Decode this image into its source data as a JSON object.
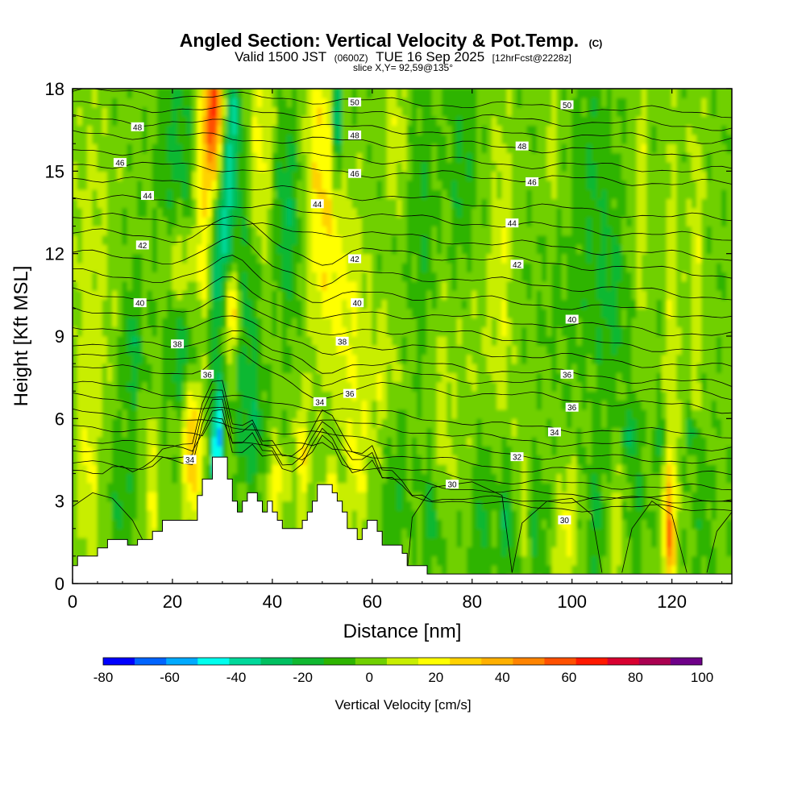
{
  "chart_data": {
    "type": "heatmap",
    "title": "Angled Section: Vertical Velocity & Pot.Temp.",
    "title_units": "(C)",
    "subtitle_main": "Valid 1500 JST",
    "subtitle_utc": "(0600Z)",
    "subtitle_date": "TUE 16 Sep 2025",
    "subtitle_fcst": "[12hrFcst@2228z]",
    "slice_label": "slice X,Y= 92,59@135°",
    "xlabel": "Distance [nm]",
    "ylabel": "Height [Kft MSL]",
    "xlim": [
      0,
      132
    ],
    "ylim": [
      0,
      18
    ],
    "x_ticks": [
      "0",
      "20",
      "40",
      "60",
      "80",
      "100",
      "120"
    ],
    "y_ticks": [
      "0",
      "3",
      "6",
      "9",
      "12",
      "15",
      "18"
    ],
    "colorbar": {
      "label": "Vertical Velocity [cm/s]",
      "ticks": [
        "-80",
        "-60",
        "-40",
        "-20",
        "0",
        "20",
        "40",
        "60",
        "80",
        "100"
      ],
      "bounds": [
        -80,
        100
      ],
      "step": 10,
      "colors": [
        "#0000ff",
        "#0064ff",
        "#00aaff",
        "#00ffee",
        "#00d89a",
        "#00c060",
        "#10b830",
        "#2eb400",
        "#70d000",
        "#c8ee00",
        "#ffff00",
        "#ffd200",
        "#ffb000",
        "#ff8400",
        "#ff5000",
        "#ff1800",
        "#d80030",
        "#aa0050",
        "#6e0088"
      ]
    },
    "isentropes_c": [
      "30",
      "32",
      "34",
      "36",
      "38",
      "40",
      "42",
      "44",
      "46",
      "48",
      "50"
    ],
    "contour_labels": [
      {
        "text": "50",
        "x": 56.5,
        "y": 17.5
      },
      {
        "text": "50",
        "x": 99,
        "y": 17.4
      },
      {
        "text": "48",
        "x": 13,
        "y": 16.6
      },
      {
        "text": "48",
        "x": 56.5,
        "y": 16.3
      },
      {
        "text": "48",
        "x": 90,
        "y": 15.9
      },
      {
        "text": "46",
        "x": 9.5,
        "y": 15.3
      },
      {
        "text": "46",
        "x": 56.5,
        "y": 14.9
      },
      {
        "text": "46",
        "x": 92,
        "y": 14.6
      },
      {
        "text": "44",
        "x": 15,
        "y": 14.1
      },
      {
        "text": "44",
        "x": 49,
        "y": 13.8
      },
      {
        "text": "44",
        "x": 88,
        "y": 13.1
      },
      {
        "text": "42",
        "x": 14,
        "y": 12.3
      },
      {
        "text": "42",
        "x": 56.5,
        "y": 11.8
      },
      {
        "text": "42",
        "x": 89,
        "y": 11.6
      },
      {
        "text": "40",
        "x": 13.5,
        "y": 10.2
      },
      {
        "text": "40",
        "x": 57,
        "y": 10.2
      },
      {
        "text": "40",
        "x": 100,
        "y": 9.6
      },
      {
        "text": "38",
        "x": 21,
        "y": 8.7
      },
      {
        "text": "38",
        "x": 54,
        "y": 8.8
      },
      {
        "text": "36",
        "x": 27,
        "y": 7.6
      },
      {
        "text": "36",
        "x": 55.5,
        "y": 6.9
      },
      {
        "text": "36",
        "x": 99,
        "y": 7.6
      },
      {
        "text": "36",
        "x": 100,
        "y": 6.4
      },
      {
        "text": "34",
        "x": 49.5,
        "y": 6.6
      },
      {
        "text": "34",
        "x": 96.5,
        "y": 5.5
      },
      {
        "text": "34",
        "x": 23.5,
        "y": 4.5
      },
      {
        "text": "32",
        "x": 89,
        "y": 4.6
      },
      {
        "text": "30",
        "x": 76,
        "y": 3.6
      },
      {
        "text": "30",
        "x": 98.5,
        "y": 2.3
      }
    ],
    "terrain_kft": [
      [
        0,
        0.65
      ],
      [
        1,
        0.65
      ],
      [
        1,
        1
      ],
      [
        5,
        1
      ],
      [
        5,
        1.3
      ],
      [
        7,
        1.3
      ],
      [
        7,
        1.6
      ],
      [
        11,
        1.6
      ],
      [
        11,
        1.4
      ],
      [
        13,
        1.4
      ],
      [
        13,
        1.6
      ],
      [
        16,
        1.6
      ],
      [
        16,
        1.9
      ],
      [
        18,
        1.9
      ],
      [
        18,
        2.3
      ],
      [
        25,
        2.3
      ],
      [
        25,
        3.2
      ],
      [
        26,
        3.2
      ],
      [
        26,
        3.8
      ],
      [
        28,
        3.8
      ],
      [
        28,
        4.6
      ],
      [
        31,
        4.6
      ],
      [
        31,
        3.8
      ],
      [
        32,
        3.8
      ],
      [
        32,
        3.0
      ],
      [
        33,
        3.0
      ],
      [
        33,
        2.6
      ],
      [
        34,
        2.6
      ],
      [
        34,
        3.0
      ],
      [
        35,
        3.0
      ],
      [
        35,
        3.3
      ],
      [
        37,
        3.3
      ],
      [
        37,
        3.0
      ],
      [
        38,
        3.0
      ],
      [
        38,
        2.6
      ],
      [
        39,
        2.6
      ],
      [
        39,
        3.0
      ],
      [
        40,
        3.0
      ],
      [
        40,
        2.6
      ],
      [
        41,
        2.6
      ],
      [
        41,
        2.3
      ],
      [
        42,
        2.3
      ],
      [
        42,
        2.0
      ],
      [
        46,
        2.0
      ],
      [
        46,
        2.3
      ],
      [
        47,
        2.3
      ],
      [
        47,
        2.6
      ],
      [
        48,
        2.6
      ],
      [
        48,
        3.0
      ],
      [
        49,
        3.0
      ],
      [
        49,
        3.6
      ],
      [
        52,
        3.6
      ],
      [
        52,
        3.3
      ],
      [
        53,
        3.3
      ],
      [
        53,
        3.0
      ],
      [
        54,
        3.0
      ],
      [
        54,
        2.6
      ],
      [
        55,
        2.6
      ],
      [
        55,
        2.0
      ],
      [
        57,
        2.0
      ],
      [
        57,
        1.6
      ],
      [
        58,
        1.6
      ],
      [
        58,
        2.0
      ],
      [
        59,
        2.0
      ],
      [
        59,
        2.3
      ],
      [
        61,
        2.3
      ],
      [
        61,
        1.9
      ],
      [
        62,
        1.9
      ],
      [
        62,
        1.4
      ],
      [
        66,
        1.4
      ],
      [
        66,
        1.1
      ],
      [
        67,
        1.1
      ],
      [
        67,
        0.65
      ],
      [
        71,
        0.65
      ],
      [
        71,
        0.35
      ],
      [
        132,
        0.35
      ]
    ]
  }
}
